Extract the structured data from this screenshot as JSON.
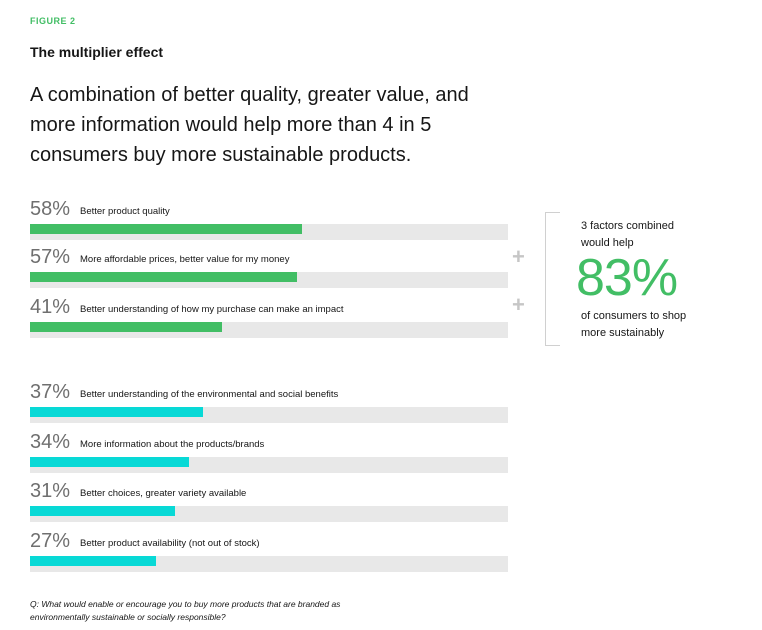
{
  "figure_label": "FIGURE 2",
  "title": "The multiplier effect",
  "headline": "A combination of better quality, greater value, and more information would help more than 4 in 5 consumers buy more sustainable products.",
  "colors": {
    "green": "#42be65",
    "teal": "#08d9d6",
    "track": "#e8e8e8"
  },
  "chart_data": {
    "type": "bar",
    "categories": [
      "Better product quality",
      "More affordable prices, better value for my money",
      "Better understanding of how my purchase can make an impact",
      "Better understanding of the environmental and social benefits",
      "More information about the products/brands",
      "Better choices, greater variety available",
      "Better product availability (not out of stock)"
    ],
    "values": [
      58,
      57,
      41,
      37,
      34,
      31,
      27
    ],
    "value_labels": [
      "58%",
      "57%",
      "41%",
      "37%",
      "34%",
      "31%",
      "27%"
    ],
    "groups": [
      "combined",
      "combined",
      "combined",
      "other",
      "other",
      "other",
      "other"
    ],
    "xlim": [
      0,
      100
    ],
    "title": "The multiplier effect"
  },
  "plus_symbols": [
    "+",
    "+"
  ],
  "callout": {
    "top_text": "3 factors combined would help",
    "value": "83%",
    "bottom_text": "of consumers to shop more sustainably"
  },
  "question": "Q: What would enable or encourage you to buy more products that are branded as environmentally sustainable or socially responsible?"
}
